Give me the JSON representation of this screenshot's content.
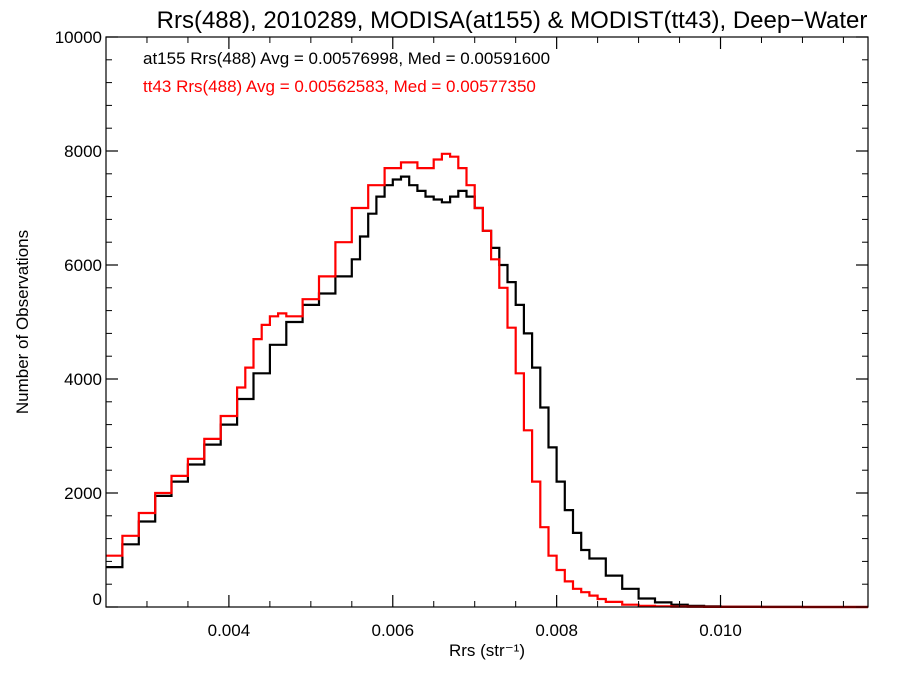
{
  "chart_data": {
    "type": "line",
    "title": "Rrs(488), 2010289, MODISA(at155) & MODIST(tt43), Deep−Water",
    "xlabel": "Rrs (str⁻¹)",
    "ylabel": "Number of Observations",
    "xlim": [
      0.0025,
      0.0118
    ],
    "ylim": [
      0,
      10000
    ],
    "x_ticks": [
      0.004,
      0.006,
      0.008,
      0.01
    ],
    "x_tick_labels": [
      "0.004",
      "0.006",
      "0.008",
      "0.010"
    ],
    "y_ticks": [
      0,
      2000,
      4000,
      6000,
      8000,
      10000
    ],
    "y_tick_labels": [
      "0",
      "2000",
      "4000",
      "6000",
      "8000",
      "10000"
    ],
    "grid": false,
    "legend_position": "top-left",
    "annotations": [
      {
        "text": "at155 Rrs(488) Avg = 0.00576998, Med = 0.00591600",
        "color": "#000000"
      },
      {
        "text": "tt43 Rrs(488) Avg = 0.00562583, Med = 0.00577350",
        "color": "#ff0000"
      }
    ],
    "series": [
      {
        "color": "#000000",
        "x": [
          0.0025,
          0.0027,
          0.0029,
          0.0031,
          0.0033,
          0.0035,
          0.0037,
          0.0039,
          0.0041,
          0.0043,
          0.0045,
          0.0047,
          0.0049,
          0.0051,
          0.0053,
          0.0055,
          0.0056,
          0.0057,
          0.0058,
          0.0059,
          0.006,
          0.0061,
          0.0062,
          0.0063,
          0.0064,
          0.0065,
          0.0066,
          0.0067,
          0.0068,
          0.0069,
          0.007,
          0.0071,
          0.0072,
          0.0073,
          0.0074,
          0.0075,
          0.0076,
          0.0077,
          0.0078,
          0.0079,
          0.008,
          0.0081,
          0.0082,
          0.0083,
          0.0084,
          0.0086,
          0.0088,
          0.009,
          0.0092,
          0.0094,
          0.0096,
          0.0098,
          0.01,
          0.0105,
          0.011,
          0.0118
        ],
        "y": [
          700,
          1100,
          1500,
          1950,
          2200,
          2500,
          2850,
          3200,
          3650,
          4100,
          4600,
          5000,
          5300,
          5500,
          5800,
          6100,
          6500,
          6900,
          7200,
          7400,
          7500,
          7550,
          7400,
          7300,
          7200,
          7150,
          7100,
          7200,
          7300,
          7200,
          7000,
          6600,
          6300,
          6000,
          5700,
          5300,
          4800,
          4200,
          3500,
          2800,
          2200,
          1700,
          1300,
          1000,
          850,
          550,
          320,
          150,
          80,
          40,
          20,
          10,
          5,
          2,
          0,
          0
        ]
      },
      {
        "color": "#ff0000",
        "x": [
          0.0025,
          0.0027,
          0.0029,
          0.0031,
          0.0033,
          0.0035,
          0.0037,
          0.0039,
          0.0041,
          0.0042,
          0.0043,
          0.0044,
          0.0045,
          0.0046,
          0.0047,
          0.0049,
          0.0051,
          0.0053,
          0.0055,
          0.0057,
          0.0059,
          0.0061,
          0.0063,
          0.0065,
          0.0066,
          0.0067,
          0.0068,
          0.0069,
          0.007,
          0.0071,
          0.0072,
          0.0073,
          0.0074,
          0.0075,
          0.0076,
          0.0077,
          0.0078,
          0.0079,
          0.008,
          0.0081,
          0.0082,
          0.0083,
          0.0084,
          0.0085,
          0.0086,
          0.0088,
          0.009,
          0.0092,
          0.0094,
          0.0096,
          0.0098,
          0.01,
          0.0105,
          0.011,
          0.0118
        ],
        "y": [
          900,
          1250,
          1650,
          2000,
          2300,
          2600,
          2950,
          3350,
          3850,
          4200,
          4700,
          4950,
          5100,
          5150,
          5100,
          5400,
          5800,
          6400,
          7000,
          7400,
          7700,
          7800,
          7700,
          7850,
          7950,
          7900,
          7700,
          7400,
          7000,
          6600,
          6100,
          5600,
          4900,
          4100,
          3100,
          2200,
          1400,
          900,
          650,
          450,
          320,
          260,
          200,
          140,
          90,
          40,
          20,
          10,
          5,
          3,
          2,
          1,
          0,
          0,
          0
        ]
      }
    ]
  }
}
